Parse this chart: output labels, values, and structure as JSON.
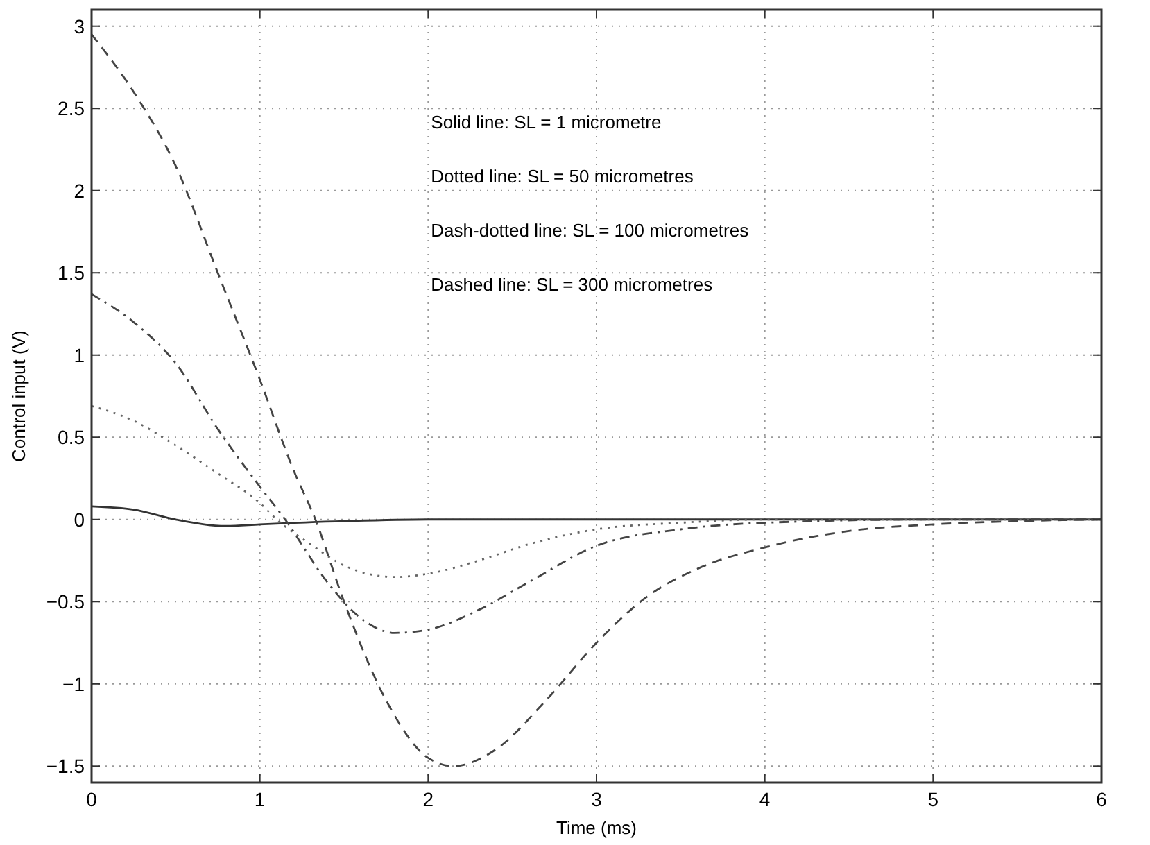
{
  "chart_data": {
    "type": "line",
    "xlabel": "Time (ms)",
    "ylabel": "Control input (V)",
    "xlim": [
      0,
      6
    ],
    "xticks": [
      0,
      1,
      2,
      3,
      4,
      5,
      6
    ],
    "ylim": [
      -1.6,
      3.1
    ],
    "yticks": [
      -1.5,
      -1,
      -0.5,
      0,
      0.5,
      1,
      1.5,
      2,
      2.5,
      3
    ],
    "grid": true,
    "marker": "none",
    "annotations": [
      "Solid line: SL = 1 micrometre",
      "Dotted line: SL = 50 micrometres",
      "Dash-dotted line: SL = 100 micrometres",
      "Dashed line: SL = 300 micrometres"
    ],
    "series": [
      {
        "color": "#333333",
        "line_style": "solid",
        "x": [
          0,
          0.25,
          0.5,
          0.8,
          1,
          1.5,
          2,
          3,
          4,
          5,
          6
        ],
        "values": [
          0.08,
          0.06,
          0,
          -0.04,
          -0.03,
          -0.01,
          0,
          0,
          0,
          0,
          0
        ]
      },
      {
        "color": "#666666",
        "line_style": "dotted",
        "x": [
          0,
          0.25,
          0.5,
          0.75,
          1,
          1.1,
          1.3,
          1.5,
          1.8,
          2,
          2.3,
          2.6,
          3,
          3.5,
          4,
          5,
          6
        ],
        "values": [
          0.69,
          0.6,
          0.45,
          0.28,
          0.1,
          0,
          -0.15,
          -0.28,
          -0.35,
          -0.33,
          -0.25,
          -0.15,
          -0.06,
          -0.02,
          0,
          0,
          0
        ]
      },
      {
        "color": "#444444",
        "line_style": "dashdot",
        "x": [
          0,
          0.25,
          0.5,
          0.75,
          1,
          1.15,
          1.4,
          1.6,
          1.8,
          2,
          2.3,
          2.6,
          3,
          3.5,
          4,
          5,
          6
        ],
        "values": [
          1.37,
          1.2,
          0.95,
          0.55,
          0.2,
          0,
          -0.38,
          -0.6,
          -0.69,
          -0.67,
          -0.55,
          -0.38,
          -0.16,
          -0.06,
          -0.02,
          0,
          0
        ]
      },
      {
        "color": "#444444",
        "line_style": "dashed",
        "x": [
          0,
          0.25,
          0.5,
          0.75,
          1,
          1.2,
          1.33,
          1.5,
          1.75,
          2,
          2.15,
          2.4,
          2.7,
          3,
          3.3,
          3.6,
          4,
          4.5,
          5,
          5.5,
          6
        ],
        "values": [
          2.95,
          2.6,
          2.15,
          1.5,
          0.85,
          0.3,
          0,
          -0.5,
          -1.1,
          -1.45,
          -1.5,
          -1.4,
          -1.1,
          -0.75,
          -0.47,
          -0.3,
          -0.17,
          -0.07,
          -0.03,
          -0.01,
          0
        ]
      }
    ]
  }
}
